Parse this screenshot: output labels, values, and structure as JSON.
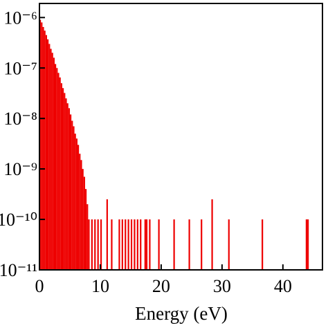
{
  "chart_data": {
    "type": "histogram",
    "x_label": "Energy (eV)",
    "color": "#ee0000",
    "log_y": true,
    "xlim": [
      0,
      46.5
    ],
    "ylim": [
      1e-11,
      1.9e-06
    ],
    "xticks": [
      0,
      10,
      20,
      30,
      40
    ],
    "yticks": [
      {
        "value": 1e-06,
        "label": "10⁻⁶"
      },
      {
        "value": 1e-07,
        "label": "10⁻⁷"
      },
      {
        "value": 1e-08,
        "label": "10⁻⁸"
      },
      {
        "value": 1e-09,
        "label": "10⁻⁹"
      },
      {
        "value": 1e-10,
        "label": "10⁻¹⁰"
      },
      {
        "value": 1e-11,
        "label": "10⁻¹¹"
      }
    ],
    "bins": [
      0,
      0.25,
      0.5,
      0.75,
      1,
      1.25,
      1.5,
      1.75,
      2,
      2.25,
      2.5,
      2.75,
      3,
      3.25,
      3.5,
      3.75,
      4,
      4.25,
      4.5,
      4.75,
      5,
      5.25,
      5.5,
      5.75,
      6,
      6.25,
      6.5,
      6.75,
      7,
      7.25,
      7.5,
      7.75,
      8,
      8.25,
      8.5,
      8.75,
      9,
      9.25,
      9.5,
      9.75,
      10,
      10.25,
      10.5,
      10.75,
      11,
      11.25,
      11.5,
      11.75,
      12,
      12.25,
      12.5,
      12.75,
      13,
      13.25,
      13.5,
      13.75,
      14,
      14.25,
      14.5,
      14.75,
      15,
      15.25,
      15.5,
      15.75,
      16,
      16.25,
      16.5,
      16.75,
      17,
      17.25,
      17.5,
      17.75,
      18,
      18.25,
      18.5,
      18.75,
      19,
      19.25,
      19.5,
      19.75,
      20,
      20.25,
      20.5,
      20.75,
      21,
      21.25,
      21.5,
      21.75,
      22,
      22.25,
      22.5,
      22.75,
      23,
      23.25,
      23.5,
      23.75,
      24,
      24.25,
      24.5,
      24.75,
      25,
      25.25,
      25.5,
      25.75,
      26,
      26.25,
      26.5,
      26.75,
      27,
      27.25,
      27.5,
      27.75,
      28,
      28.25,
      28.5,
      28.75,
      29,
      29.25,
      29.5,
      29.75,
      30,
      30.25,
      30.5,
      30.75,
      31,
      31.25,
      31.5,
      31.75,
      32,
      32.25,
      32.5,
      32.75,
      33,
      33.25,
      33.5,
      33.75,
      34,
      34.25,
      34.5,
      34.75,
      35,
      35.25,
      35.5,
      35.75,
      36,
      36.25,
      36.5,
      36.75,
      37,
      37.25,
      37.5,
      37.75,
      38,
      38.25,
      38.5,
      38.75,
      39,
      39.25,
      39.5,
      39.75,
      40,
      40.25,
      40.5,
      40.75,
      41,
      41.25,
      41.5,
      41.75,
      42,
      42.25,
      42.5,
      42.75,
      43,
      43.25,
      43.5,
      43.75,
      44,
      44.25,
      44.5,
      44.75,
      45,
      45.25,
      45.5,
      45.75,
      46,
      46.25,
      46.5
    ],
    "counts": [
      9e-07,
      8e-07,
      6.5e-07,
      5.5e-07,
      4.5e-07,
      3.7e-07,
      3e-07,
      2.4e-07,
      2e-07,
      1.6e-07,
      1.2e-07,
      1e-07,
      8e-08,
      6.5e-08,
      5e-08,
      4e-08,
      3.2e-08,
      2.5e-08,
      2e-08,
      1.6e-08,
      1.2e-08,
      9e-09,
      7e-09,
      5e-09,
      4e-09,
      3e-09,
      2e-09,
      1.5e-09,
      1e-09,
      7e-10,
      4e-10,
      2e-10,
      1e-10,
      0,
      1e-10,
      0,
      1e-10,
      0,
      1e-10,
      0,
      1e-10,
      0,
      0,
      0,
      2.5e-10,
      0,
      0,
      1e-10,
      0,
      0,
      0,
      0,
      1e-10,
      0,
      1e-10,
      0,
      1e-10,
      0,
      1e-10,
      0,
      1e-10,
      0,
      1e-10,
      0,
      1e-10,
      0,
      1e-10,
      0,
      0,
      1e-10,
      1e-10,
      0,
      1e-10,
      0,
      0,
      0,
      0,
      0,
      1e-10,
      0,
      0,
      0,
      0,
      0,
      0,
      0,
      0,
      0,
      1e-10,
      0,
      0,
      0,
      0,
      0,
      0,
      0,
      0,
      0,
      1e-10,
      0,
      0,
      0,
      0,
      0,
      0,
      0,
      1e-10,
      0,
      0,
      0,
      0,
      0,
      0,
      2.5e-10,
      0,
      0,
      0,
      0,
      0,
      0,
      0,
      0,
      0,
      0,
      1e-10,
      0,
      0,
      0,
      0,
      0,
      0,
      0,
      0,
      0,
      0,
      0,
      0,
      0,
      0,
      0,
      0,
      0,
      0,
      0,
      0,
      0,
      1e-10,
      0,
      0,
      0,
      0,
      0,
      0,
      0,
      0,
      0,
      0,
      0,
      0,
      0,
      0,
      0,
      0,
      0,
      0,
      0,
      0,
      0,
      0,
      0,
      0,
      0,
      0,
      0,
      0,
      1e-10,
      1e-10,
      0,
      0,
      0,
      0,
      0,
      0,
      0,
      0,
      0
    ]
  }
}
